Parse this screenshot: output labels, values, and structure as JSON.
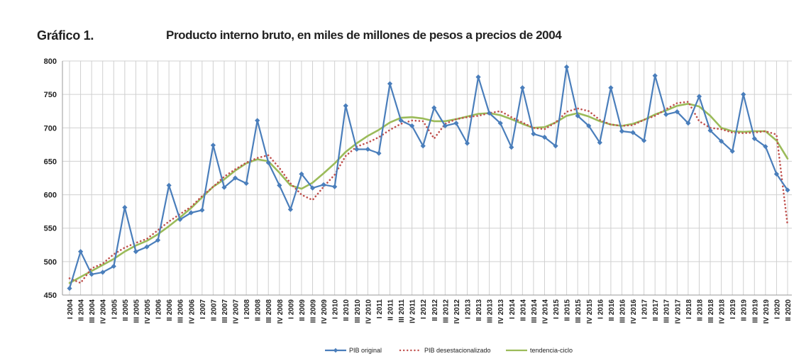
{
  "header": {
    "label": "Gráfico 1.",
    "title": "Producto interno bruto, en miles de millones de pesos a precios de 2004"
  },
  "chart_data": {
    "type": "line",
    "title": "Producto interno bruto, en miles de millones de pesos a precios de 2004",
    "xlabel": "",
    "ylabel": "",
    "ylim": [
      450,
      800
    ],
    "yticks": [
      450,
      500,
      550,
      600,
      650,
      700,
      750,
      800
    ],
    "grid": true,
    "legend_position": "bottom",
    "categories": [
      "I 2004",
      "II 2004",
      "III 2004",
      "IV 2004",
      "I 2005",
      "II 2005",
      "III 2005",
      "IV 2005",
      "I 2006",
      "II 2006",
      "III 2006",
      "IV 2006",
      "I 2007",
      "II 2007",
      "III 2007",
      "IV 2007",
      "I 2008",
      "II 2008",
      "III 2008",
      "IV 2008",
      "I 2009",
      "II 2009",
      "III 2009",
      "IV 2009",
      "I 2010",
      "II 2010",
      "III 2010",
      "IV 2010",
      "I 2011",
      "II 2011",
      "III 2011",
      "IV 2011",
      "I 2012",
      "II 2012",
      "III 2012",
      "IV 2012",
      "I 2013",
      "II 2013",
      "III 2013",
      "IV 2013",
      "I 2014",
      "II 2014",
      "III 2014",
      "IV 2014",
      "I 2015",
      "II 2015",
      "III 2015",
      "IV 2015",
      "I 2016",
      "II 2016",
      "III 2016",
      "IV 2016",
      "I 2017",
      "II 2017",
      "III 2017",
      "IV 2017",
      "I 2018",
      "II 2018",
      "III 2018",
      "IV 2018",
      "I 2019",
      "II 2019",
      "III 2019",
      "IV 2019",
      "I 2020",
      "II 2020"
    ],
    "series": [
      {
        "name": "PIB original",
        "color": "#4A7EBB",
        "style": "line-diamond",
        "values": [
          460,
          515,
          481,
          484,
          493,
          581,
          515,
          522,
          532,
          614,
          563,
          573,
          577,
          674,
          611,
          625,
          617,
          711,
          648,
          614,
          578,
          631,
          610,
          615,
          612,
          733,
          668,
          668,
          662,
          766,
          711,
          703,
          673,
          730,
          703,
          707,
          677,
          776,
          722,
          707,
          671,
          760,
          691,
          686,
          673,
          791,
          718,
          703,
          678,
          760,
          695,
          693,
          681,
          778,
          720,
          724,
          707,
          747,
          696,
          680,
          665,
          750,
          684,
          672,
          631,
          607
        ]
      },
      {
        "name": "PIB desestacionalizado",
        "color": "#C0504D",
        "style": "dotted",
        "values": [
          475,
          468,
          490,
          497,
          511,
          521,
          528,
          534,
          547,
          560,
          571,
          582,
          598,
          612,
          627,
          638,
          648,
          655,
          659,
          640,
          617,
          600,
          592,
          612,
          630,
          658,
          672,
          678,
          686,
          697,
          706,
          711,
          710,
          684,
          706,
          713,
          716,
          718,
          722,
          725,
          716,
          708,
          700,
          698,
          708,
          724,
          729,
          725,
          712,
          705,
          703,
          704,
          712,
          718,
          728,
          737,
          739,
          710,
          700,
          698,
          693,
          692,
          693,
          695,
          690,
          554
        ]
      },
      {
        "name": "tendencia-ciclo",
        "color": "#9BBB59",
        "style": "solid",
        "values": [
          468,
          477,
          486,
          495,
          504,
          515,
          524,
          531,
          541,
          553,
          566,
          580,
          596,
          612,
          623,
          636,
          647,
          653,
          650,
          633,
          614,
          609,
          618,
          632,
          647,
          664,
          677,
          688,
          697,
          708,
          715,
          716,
          714,
          710,
          710,
          713,
          717,
          721,
          722,
          719,
          713,
          706,
          700,
          701,
          708,
          718,
          722,
          717,
          710,
          705,
          703,
          706,
          712,
          720,
          726,
          733,
          736,
          732,
          718,
          700,
          695,
          694,
          695,
          695,
          681,
          654
        ]
      }
    ]
  }
}
